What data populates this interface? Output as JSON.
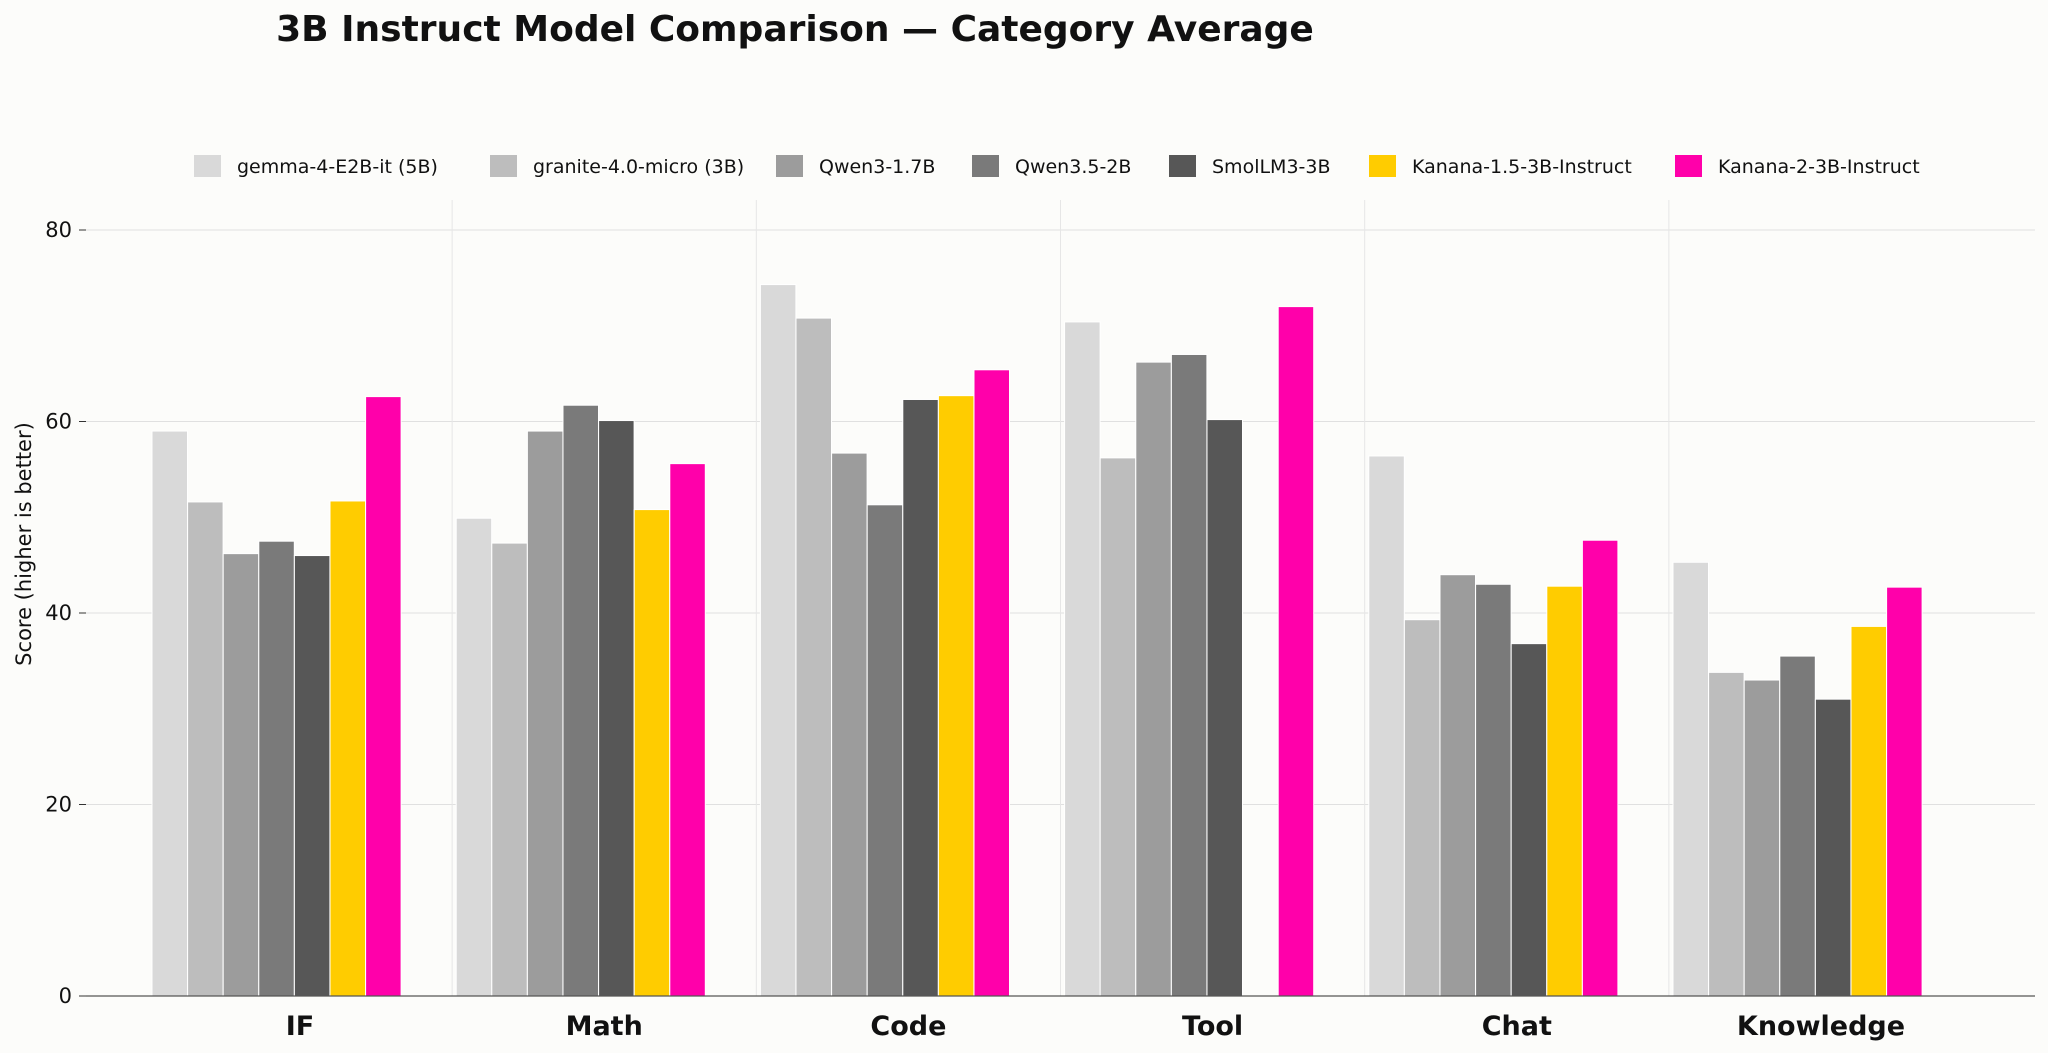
{
  "chart_data": {
    "type": "bar",
    "title": "3B Instruct Model Comparison — Category Average",
    "ylabel": "Score (higher is better)",
    "xlabel": "",
    "ylim": [
      0,
      83
    ],
    "yticks": [
      0,
      20,
      40,
      60,
      80
    ],
    "grid": true,
    "legend_position": "top",
    "categories": [
      "IF",
      "Math",
      "Code",
      "Tool",
      "Chat",
      "Knowledge"
    ],
    "series": [
      {
        "name": "gemma-4-E2B-it (5B)",
        "color": "#d9d9d9",
        "values": [
          59.0,
          49.9,
          74.3,
          70.4,
          56.4,
          45.3
        ]
      },
      {
        "name": "granite-4.0-micro (3B)",
        "color": "#bdbdbd",
        "values": [
          51.6,
          47.3,
          70.8,
          56.2,
          39.3,
          33.8
        ]
      },
      {
        "name": "Qwen3-1.7B",
        "color": "#9c9c9c",
        "values": [
          46.2,
          59.0,
          56.7,
          66.2,
          44.0,
          33.0
        ]
      },
      {
        "name": "Qwen3.5-2B",
        "color": "#7a7a7a",
        "values": [
          47.5,
          61.7,
          51.3,
          67.0,
          43.0,
          35.5
        ]
      },
      {
        "name": "SmolLM3-3B",
        "color": "#575757",
        "values": [
          46.0,
          60.1,
          62.3,
          60.2,
          36.8,
          31.0
        ]
      },
      {
        "name": "Kanana-1.5-3B-Instruct",
        "color": "#ffcc00",
        "values": [
          51.7,
          50.8,
          62.7,
          null,
          42.8,
          38.6
        ]
      },
      {
        "name": "Kanana-2-3B-Instruct",
        "color": "#ff00aa",
        "values": [
          62.6,
          55.6,
          65.4,
          72.0,
          47.6,
          42.7
        ]
      }
    ]
  }
}
